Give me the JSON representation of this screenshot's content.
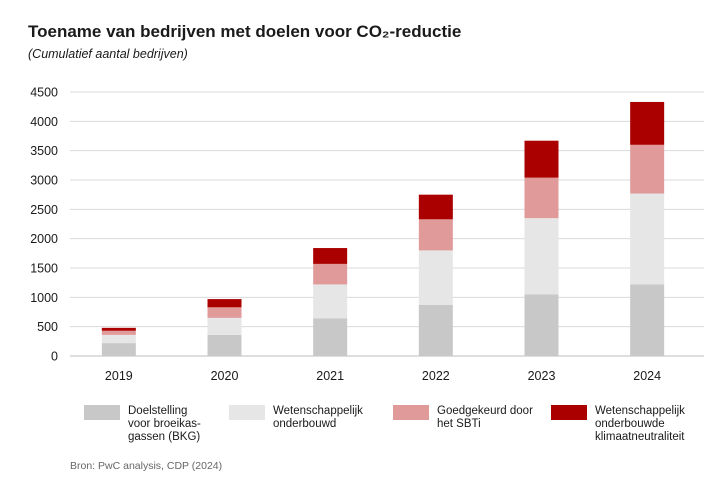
{
  "title": "Toename van bedrijven met doelen voor CO₂-reductie",
  "subtitle": "(Cumulatief aantal bedrijven)",
  "source": "Bron: PwC analysis, CDP (2024)",
  "colors": {
    "series": [
      "#c8c8c8",
      "#e6e6e6",
      "#e09a9a",
      "#aa0000"
    ],
    "grid": "#d9d9d9",
    "axis": "#bdbdbd"
  },
  "chart_data": {
    "type": "bar",
    "stacked": true,
    "title": "Toename van bedrijven met doelen voor CO₂-reductie",
    "subtitle": "(Cumulatief aantal bedrijven)",
    "categories": [
      "2019",
      "2020",
      "2021",
      "2022",
      "2023",
      "2024"
    ],
    "series": [
      {
        "name": "Doelstelling voor broeikas-gassen (BKG)",
        "values": [
          220,
          360,
          640,
          870,
          1050,
          1220
        ]
      },
      {
        "name": "Wetenschappelijk onderbouwd",
        "values": [
          140,
          290,
          580,
          930,
          1300,
          1550
        ]
      },
      {
        "name": "Goedgekeurd door het SBTi",
        "values": [
          70,
          180,
          350,
          530,
          690,
          830
        ]
      },
      {
        "name": "Wetenschappelijk onderbouwde klimaatneutraliteit",
        "values": [
          50,
          140,
          270,
          420,
          630,
          730
        ]
      }
    ],
    "yticks": [
      0,
      500,
      1000,
      1500,
      2000,
      2500,
      3000,
      3500,
      4000,
      4500
    ],
    "ylim": [
      0,
      4500
    ],
    "grid": true,
    "xlabel": "",
    "ylabel": "",
    "legend_position": "bottom"
  },
  "legend": [
    {
      "label": "Doelstelling\nvoor broeikas-\ngassen (BKG)"
    },
    {
      "label": "Wetenschappelijk\nonderbouwd"
    },
    {
      "label": "Goedgekeurd door\nhet SBTi"
    },
    {
      "label": "Wetenschappelijk\nonderbouwde\nklimaatneutraliteit"
    }
  ]
}
